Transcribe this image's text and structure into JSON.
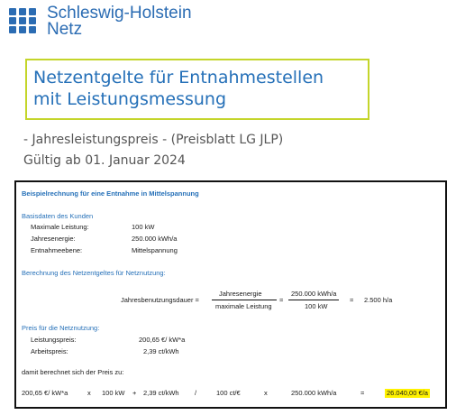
{
  "logo": {
    "line1": "Schleswig-Holstein",
    "line2": "Netz",
    "color": "#2b6cb3"
  },
  "title": {
    "line1": "Netzentgelte für Entnahmestellen",
    "line2": "mit Leistungsmessung",
    "border_color": "#c4d52a",
    "text_color": "#2570b8"
  },
  "subtitle": "- Jahresleistungspreis - (Preisblatt LG JLP)",
  "validity": "Gültig ab 01. Januar 2024",
  "example": {
    "heading": "Beispielrechnung für eine Entnahme in Mittelspannung",
    "base_heading": "Basisdaten des Kunden",
    "base": [
      {
        "label": "Maximale Leistung:",
        "value": "100 kW"
      },
      {
        "label": "Jahresenergie:",
        "value": "250.000 kWh/a"
      },
      {
        "label": "Entnahmeebene:",
        "value": "Mittelspannung"
      }
    ],
    "calc_heading": "Berechnung des Netzentgeltes für Netznutzung:",
    "formula": {
      "lhs": "Jahresbenutzungsdauer =",
      "num1": "Jahresenergie",
      "den1": "maximale Leistung",
      "eq1": "=",
      "num2": "250.000 kWh/a",
      "den2": "100 kW",
      "eq2": "=",
      "result": "2.500 h/a"
    },
    "price_heading": "Preis für die Netznutzung:",
    "prices": [
      {
        "label": "Leistungspreis:",
        "value": "200,65 €/ kW*a"
      },
      {
        "label": "Arbeitspreis:",
        "value": "2,39 ct/kWh"
      }
    ],
    "calc_intro": "damit berechnet sich der Preis zu:",
    "final": {
      "p1": "200,65 €/ kW*a",
      "op1": "x",
      "p2": "100 kW",
      "op2": "+",
      "p3": "2,39 ct/kWh",
      "op3": "/",
      "p4": "100 ct/€",
      "op4": "x",
      "p5": "250.000 kWh/a",
      "op5": "=",
      "result": "26.040,00 €/a",
      "highlight_color": "#fff200"
    }
  }
}
